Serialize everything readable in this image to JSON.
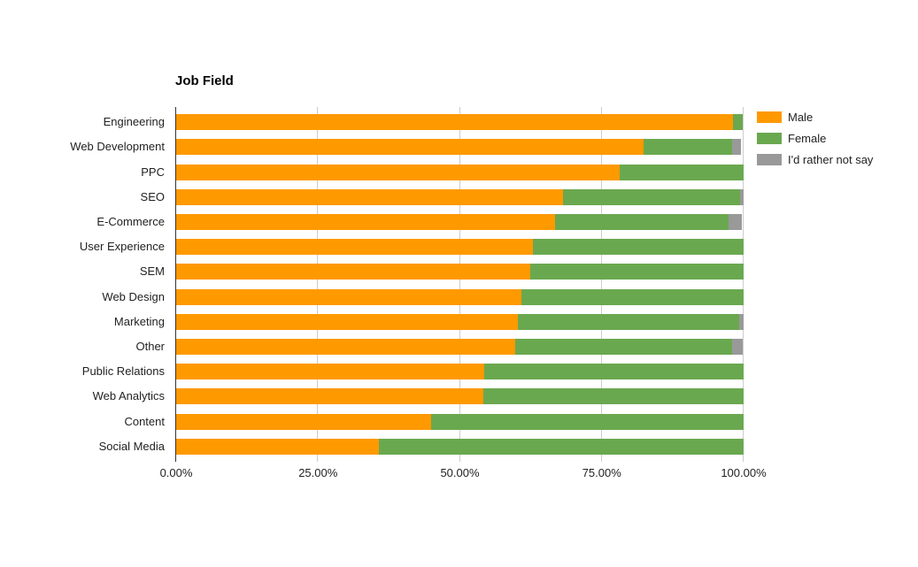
{
  "page": {
    "background_color": "#FFFFFF"
  },
  "chart_data": {
    "type": "bar",
    "orientation": "horizontal",
    "stacked": true,
    "title": "Job Field",
    "categories": [
      "Engineering",
      "Web Development",
      "PPC",
      "SEO",
      "E-Commerce",
      "User Experience",
      "SEM",
      "Web Design",
      "Marketing",
      "Other",
      "Public Relations",
      "Web Analytics",
      "Content",
      "Social Media"
    ],
    "series": [
      {
        "name": "Male",
        "color": "#FF9900",
        "values": [
          98.2,
          82.3,
          78.2,
          68.2,
          66.8,
          62.9,
          62.4,
          60.9,
          60.2,
          59.8,
          54.3,
          54.1,
          45.0,
          35.7
        ]
      },
      {
        "name": "Female",
        "color": "#6AA84F",
        "values": [
          1.6,
          15.6,
          21.8,
          31.1,
          30.6,
          37.1,
          37.6,
          39.1,
          39.0,
          38.1,
          45.7,
          45.9,
          55.0,
          64.3
        ]
      },
      {
        "name": "I'd rather not say",
        "color": "#999999",
        "values": [
          0,
          1.7,
          0,
          0.7,
          2.3,
          0,
          0,
          0,
          0.8,
          1.9,
          0,
          0,
          0,
          0
        ]
      }
    ],
    "x_axis": {
      "min": 0,
      "max": 100,
      "unit": "%",
      "ticks": [
        {
          "label": "0.00%",
          "value": 0
        },
        {
          "label": "25.00%",
          "value": 25
        },
        {
          "label": "50.00%",
          "value": 50
        },
        {
          "label": "75.00%",
          "value": 75
        },
        {
          "label": "100.00%",
          "value": 100
        }
      ]
    },
    "legend_position": "right",
    "grid": true,
    "axis_color": "#333333",
    "gridline_color": "#CCCCCC",
    "text_color": "#222222"
  }
}
